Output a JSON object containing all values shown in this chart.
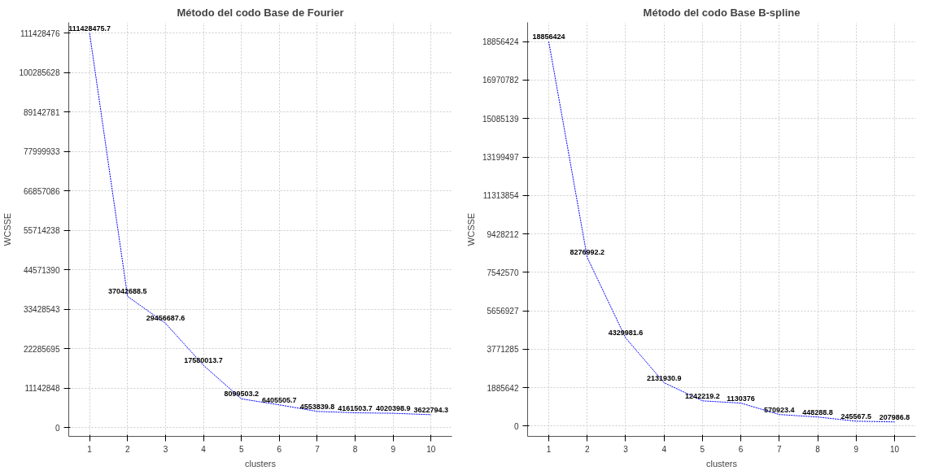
{
  "chart_data": [
    {
      "type": "line",
      "title": "Método del codo Base de Fourier",
      "xlabel": "clusters",
      "ylabel": "WCSSE",
      "x": [
        1,
        2,
        3,
        4,
        5,
        6,
        7,
        8,
        9,
        10
      ],
      "series": [
        {
          "color": "#0000ff",
          "values": [
            111428475.7,
            37042688.5,
            29456687.6,
            17580013.7,
            8099503.2,
            6405505.7,
            4553839.8,
            4161503.7,
            4020398.9,
            3622794.3
          ]
        }
      ],
      "xticks": [
        1,
        2,
        3,
        4,
        5,
        6,
        7,
        8,
        9,
        10
      ],
      "xlim": [
        0.45,
        10.55
      ],
      "ylim": [
        -2500000,
        114500000
      ],
      "yticks": [
        0,
        11142848,
        22285695,
        33428543,
        44571390,
        55714238,
        66857086,
        77999933,
        89142781,
        100285628,
        111428476
      ],
      "grid": true,
      "data_labels": true,
      "line_style": "dotted",
      "marker": "none"
    },
    {
      "type": "line",
      "title": "Método del codo Base B-spline",
      "xlabel": "clusters",
      "ylabel": "WCSSE",
      "x": [
        1,
        2,
        3,
        4,
        5,
        6,
        7,
        8,
        9,
        10
      ],
      "series": [
        {
          "color": "#0000ff",
          "values": [
            18856424,
            8276992.2,
            4329981.6,
            2131930.9,
            1242219.2,
            1130376,
            570923.4,
            448288.8,
            245567.5,
            207986.8
          ]
        }
      ],
      "xticks": [
        1,
        2,
        3,
        4,
        5,
        6,
        7,
        8,
        9,
        10
      ],
      "xlim": [
        0.45,
        10.55
      ],
      "ylim": [
        -500000,
        19800000
      ],
      "yticks": [
        0,
        1885642,
        3771285,
        5656927,
        7542570,
        9428212,
        11313854,
        13199497,
        15085139,
        16970782,
        18856424
      ],
      "grid": true,
      "data_labels": true,
      "line_style": "dotted",
      "marker": "none"
    }
  ]
}
